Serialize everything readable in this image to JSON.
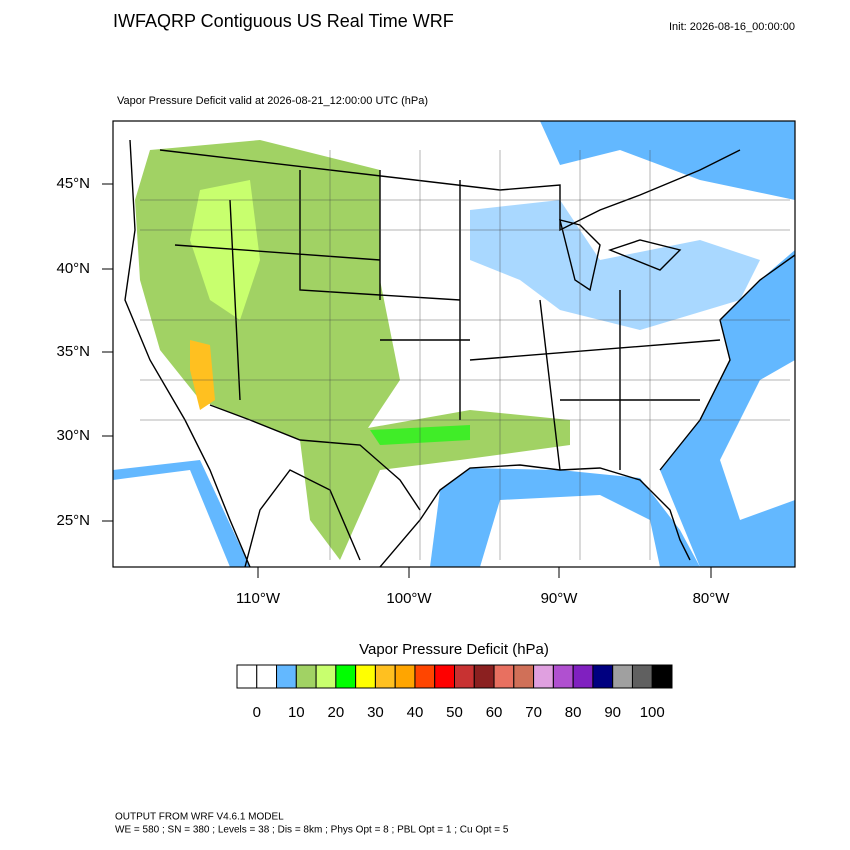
{
  "header": {
    "title": "IWFAQRP Contiguous US Real Time WRF",
    "init": "Init: 2026-08-16_00:00:00",
    "subtitle": "Vapor Pressure Deficit valid at 2026-08-21_12:00:00 UTC   (hPa)"
  },
  "map": {
    "lat_labels": [
      "45°N",
      "40°N",
      "35°N",
      "30°N",
      "25°N"
    ],
    "lon_labels": [
      "110°W",
      "100°W",
      "90°W",
      "80°W"
    ]
  },
  "colorbar": {
    "title": "Vapor Pressure Deficit  (hPa)",
    "colors": [
      "#ffffff",
      "#ffffff",
      "#63b8ff",
      "#a1d264",
      "#c8ff6e",
      "#00ff00",
      "#ffff00",
      "#ffc020",
      "#ffa500",
      "#ff4500",
      "#ff0000",
      "#c83232",
      "#8b2020",
      "#e87060",
      "#d07058",
      "#e0a0e0",
      "#b050d0",
      "#8020c0",
      "#000080",
      "#a0a0a0",
      "#606060",
      "#000000"
    ],
    "labels": [
      0,
      10,
      20,
      30,
      40,
      50,
      60,
      70,
      80,
      90,
      100
    ]
  },
  "footer": {
    "line1": "OUTPUT FROM WRF V4.6.1 MODEL",
    "line2": "WE = 580 ; SN = 380 ; Levels = 38 ; Dis = 8km ; Phys Opt = 8 ; PBL Opt = 1 ; Cu Opt = 5"
  }
}
